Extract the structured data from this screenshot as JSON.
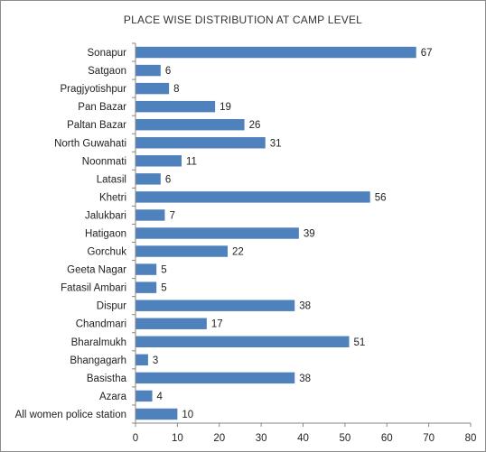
{
  "chart_data": {
    "type": "bar",
    "orientation": "horizontal",
    "title": "PLACE WISE DISTRIBUTION AT CAMP LEVEL",
    "xlabel": "",
    "ylabel": "",
    "xlim": [
      0,
      80
    ],
    "ticks": [
      0,
      10,
      20,
      30,
      40,
      50,
      60,
      70,
      80
    ],
    "grid": false,
    "legend": "none",
    "bar_color": "#4f81bd",
    "categories": [
      "Sonapur",
      "Satgaon",
      "Pragjyotishpur",
      "Pan Bazar",
      "Paltan Bazar",
      "North Guwahati",
      "Noonmati",
      "Latasil",
      "Khetri",
      "Jalukbari",
      "Hatigaon",
      "Gorchuk",
      "Geeta Nagar",
      "Fatasil Ambari",
      "Dispur",
      "Chandmari",
      "Bharalmukh",
      "Bhangagarh",
      "Basistha",
      "Azara",
      "All women police station"
    ],
    "values": [
      67,
      6,
      8,
      19,
      26,
      31,
      11,
      6,
      56,
      7,
      39,
      22,
      5,
      5,
      38,
      17,
      51,
      3,
      38,
      4,
      10
    ]
  }
}
